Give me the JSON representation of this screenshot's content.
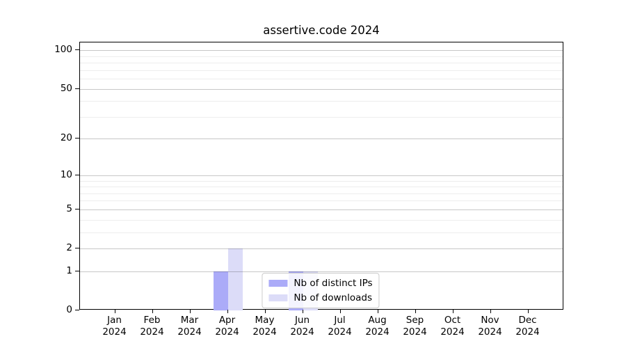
{
  "chart_data": {
    "type": "bar",
    "title": "assertive.code 2024",
    "categories": [
      "Jan",
      "Feb",
      "Mar",
      "Apr",
      "May",
      "Jun",
      "Jul",
      "Aug",
      "Sep",
      "Oct",
      "Nov",
      "Dec"
    ],
    "year_label": "2024",
    "series": [
      {
        "name": "Nb of distinct IPs",
        "color": "#ababf8",
        "values": [
          0,
          0,
          0,
          1,
          0,
          1,
          0,
          0,
          0,
          0,
          0,
          0
        ]
      },
      {
        "name": "Nb of downloads",
        "color": "#dcdcf8",
        "values": [
          0,
          0,
          0,
          2,
          0,
          1,
          0,
          0,
          0,
          0,
          0,
          0
        ]
      }
    ],
    "xlabel": "",
    "ylabel": "",
    "yscale": "log1p",
    "ylim": [
      0,
      115
    ],
    "yticks": [
      0,
      1,
      2,
      5,
      10,
      20,
      50,
      100
    ],
    "yticks_minor": [
      3,
      4,
      6,
      7,
      8,
      9,
      30,
      40,
      60,
      70,
      80,
      90
    ],
    "grid": true,
    "legend_position": "lower center",
    "colors": {
      "major_grid": "rgba(0,0,0,0.22)",
      "minor_grid": "rgba(0,0,0,0.07)",
      "spine": "#000000",
      "background": "#ffffff"
    }
  }
}
